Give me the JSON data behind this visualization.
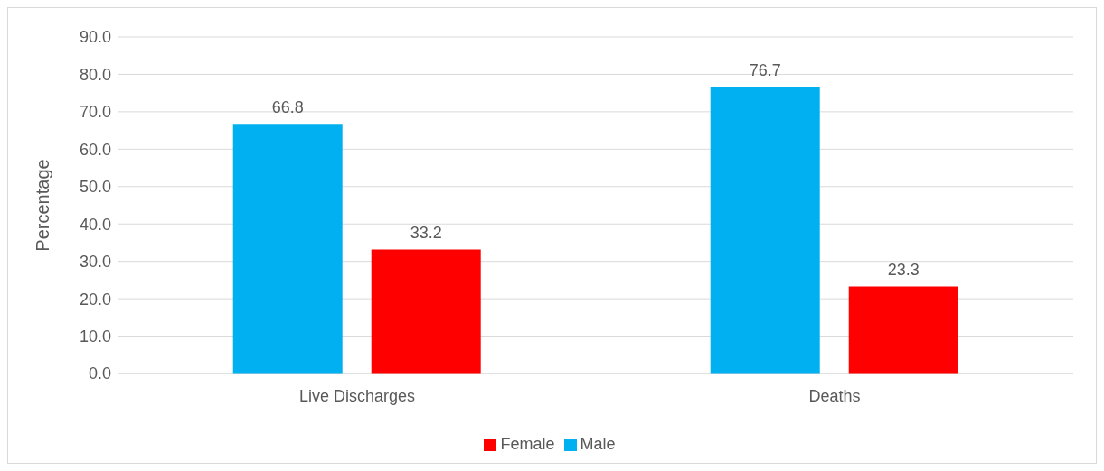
{
  "chart_data": {
    "type": "bar",
    "ylabel": "Percentage",
    "categories": [
      "Live Discharges",
      "Deaths"
    ],
    "series": [
      {
        "name": "Male",
        "color": "#00b0f0",
        "values": [
          66.8,
          76.7
        ]
      },
      {
        "name": "Female",
        "color": "#ff0000",
        "values": [
          33.2,
          23.3
        ]
      }
    ],
    "ylim": [
      0,
      90
    ],
    "yticks": [
      {
        "value": 0,
        "label": "0.0"
      },
      {
        "value": 10,
        "label": "10.0"
      },
      {
        "value": 20,
        "label": "20.0"
      },
      {
        "value": 30,
        "label": "30.0"
      },
      {
        "value": 40,
        "label": "40.0"
      },
      {
        "value": 50,
        "label": "50.0"
      },
      {
        "value": 60,
        "label": "60.0"
      },
      {
        "value": 70,
        "label": "70.0"
      },
      {
        "value": 80,
        "label": "80.0"
      },
      {
        "value": 90,
        "label": "90.0"
      }
    ],
    "grid": "y",
    "legend": "bottom",
    "data_labels": true
  }
}
